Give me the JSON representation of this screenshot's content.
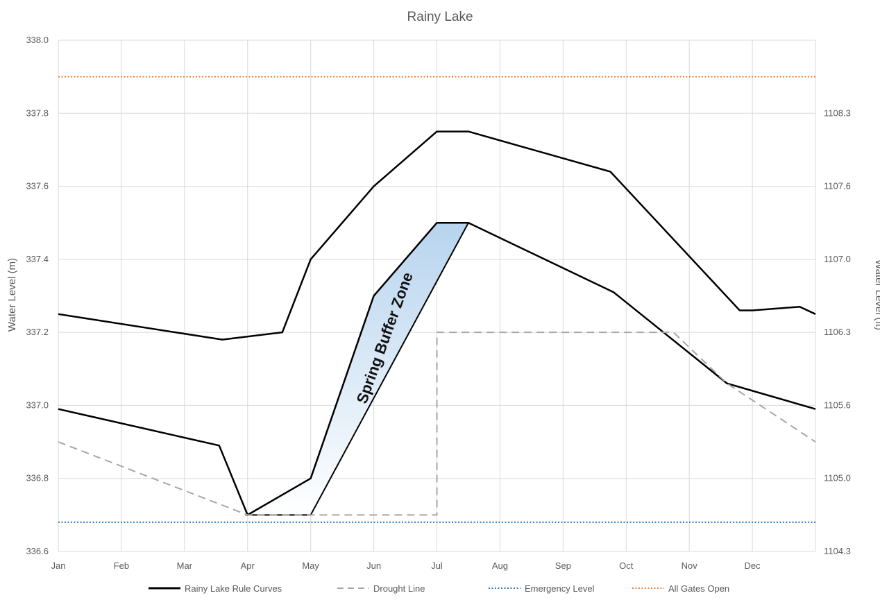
{
  "chart_data": {
    "type": "line",
    "title": "Rainy Lake",
    "ylabel": "Water Level (m)",
    "y2label": "Water Level (ft)",
    "ylim": [
      336.6,
      338.0
    ],
    "xlim": [
      0,
      12
    ],
    "categories": [
      "Jan",
      "Feb",
      "Mar",
      "Apr",
      "May",
      "Jun",
      "Jul",
      "Aug",
      "Sep",
      "Oct",
      "Nov",
      "Dec"
    ],
    "y_ticks": [
      "336.6",
      "336.8",
      "337.0",
      "337.2",
      "337.4",
      "337.6",
      "337.8",
      "338.0"
    ],
    "y2_ticks": [
      {
        "label": "1104.3",
        "at": 336.6
      },
      {
        "label": "1105.0",
        "at": 336.8
      },
      {
        "label": "1105.6",
        "at": 337.0
      },
      {
        "label": "1106.3",
        "at": 337.2
      },
      {
        "label": "1107.0",
        "at": 337.4
      },
      {
        "label": "1107.6",
        "at": 337.6
      },
      {
        "label": "1108.3",
        "at": 337.8
      }
    ],
    "grid": true,
    "legend_position": "bottom",
    "series": [
      {
        "name": "Rainy Lake Rule Curves",
        "style": "solid",
        "color": "#000000",
        "x": [
          0,
          2.6,
          3.55,
          4.0,
          5.0,
          6.0,
          6.5,
          8.75,
          10.8,
          11.0,
          11.75,
          12.0
        ],
        "y": [
          337.25,
          337.18,
          337.2,
          337.4,
          337.6,
          337.75,
          337.75,
          337.64,
          337.26,
          337.26,
          337.27,
          337.25
        ]
      },
      {
        "name": "Rainy Lake Rule Curves",
        "style": "solid",
        "color": "#000000",
        "x": [
          0,
          2.55,
          3.0,
          4.0,
          5.0,
          6.0,
          6.5,
          8.8,
          10.6,
          11.0,
          12.0
        ],
        "y": [
          336.99,
          336.89,
          336.7,
          336.8,
          337.3,
          337.5,
          337.5,
          337.31,
          337.06,
          337.04,
          336.99
        ]
      },
      {
        "name": "Drought Line",
        "style": "dashed",
        "color": "#a6a6a6",
        "x": [
          0,
          3.0,
          6.0,
          6.0,
          9.75,
          10.6,
          12.0
        ],
        "y": [
          336.9,
          336.7,
          336.7,
          337.2,
          337.2,
          337.06,
          336.9
        ]
      },
      {
        "name": "Emergency Level",
        "style": "dotted",
        "color": "#2e75b6",
        "x": [
          0,
          12
        ],
        "y": [
          336.68,
          336.68
        ]
      },
      {
        "name": "All Gates Open",
        "style": "dotted",
        "color": "#ed7d31",
        "x": [
          0,
          12
        ],
        "y": [
          337.9,
          337.9
        ]
      }
    ],
    "zone": {
      "label": "Spring Buffer Zone",
      "fill_top": "#b7d4ee",
      "fill_bottom": "#ffffff",
      "x": [
        3.0,
        4.0,
        5.0,
        6.0,
        6.5,
        4.0
      ],
      "y": [
        336.7,
        336.8,
        337.3,
        337.5,
        337.5,
        336.7
      ]
    },
    "legend": [
      {
        "label": "Rainy Lake Rule Curves",
        "style": "solid",
        "color": "#000000"
      },
      {
        "label": "Drought Line",
        "style": "dashed",
        "color": "#a6a6a6"
      },
      {
        "label": "Emergency Level",
        "style": "dotted",
        "color": "#2e75b6"
      },
      {
        "label": "All Gates Open",
        "style": "dotted",
        "color": "#ed7d31"
      }
    ]
  }
}
